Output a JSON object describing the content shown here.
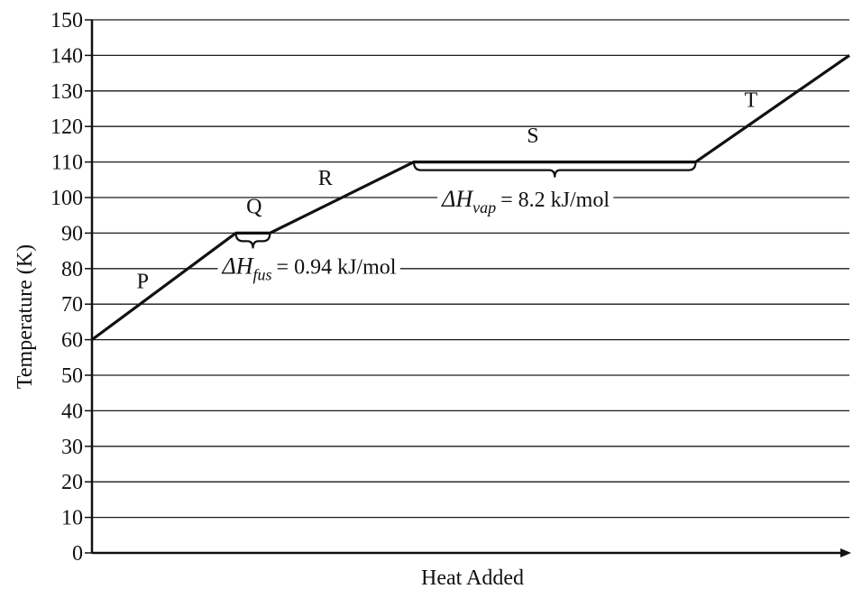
{
  "chart_data": {
    "type": "line",
    "title": "",
    "xlabel": "Heat Added",
    "ylabel": "Temperature (K)",
    "ylim": [
      0,
      150
    ],
    "yticks": [
      0,
      10,
      20,
      30,
      40,
      50,
      60,
      70,
      80,
      90,
      100,
      110,
      120,
      130,
      140,
      150
    ],
    "xlim": [
      0,
      100
    ],
    "grid": true,
    "grid_axis": "y",
    "series": [
      {
        "points": [
          {
            "x": 0,
            "y": 60
          },
          {
            "x": 19,
            "y": 90
          },
          {
            "x": 23.5,
            "y": 90
          },
          {
            "x": 42.5,
            "y": 110
          },
          {
            "x": 79.7,
            "y": 110
          },
          {
            "x": 100,
            "y": 140
          }
        ]
      }
    ],
    "segment_labels": [
      {
        "text": "P",
        "x": 6.7,
        "y": 74.5
      },
      {
        "text": "Q",
        "x": 21.4,
        "y": 95.5
      },
      {
        "text": "R",
        "x": 30.8,
        "y": 103.5
      },
      {
        "text": "S",
        "x": 58.2,
        "y": 115.5
      },
      {
        "text": "T",
        "x": 87.0,
        "y": 125.5
      }
    ],
    "annotations": [
      {
        "symbol": "ΔH",
        "subscript": "fus",
        "value_text": "= 0.94 kJ/mol",
        "brace_x": [
          19,
          23.5
        ],
        "brace_y": 90,
        "text_x": 17.2,
        "text_y": 78.5
      },
      {
        "symbol": "ΔH",
        "subscript": "vap",
        "value_text": "= 8.2 kJ/mol",
        "brace_x": [
          42.5,
          79.7
        ],
        "brace_y": 110,
        "text_x": 46.2,
        "text_y": 97.5
      }
    ]
  }
}
